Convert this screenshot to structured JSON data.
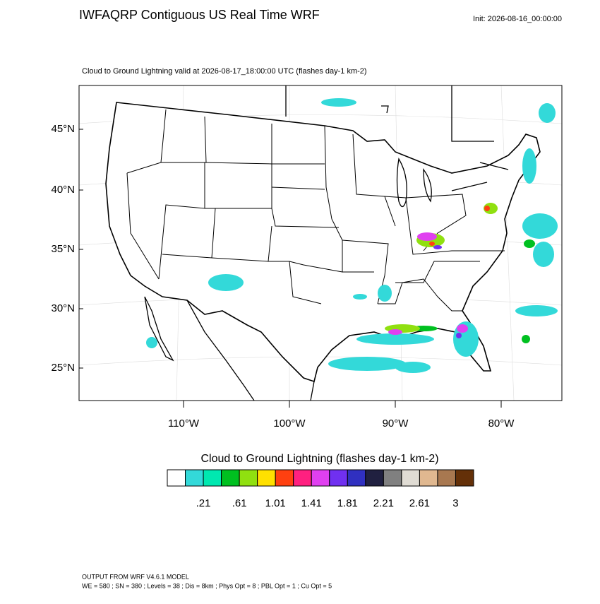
{
  "header": {
    "title": "IWFAQRP Contiguous US Real Time WRF",
    "init": "Init: 2026-08-16_00:00:00"
  },
  "plot": {
    "subtitle": "Cloud to Ground Lightning valid at 2026-08-17_18:00:00 UTC   (flashes day-1 km-2)",
    "lat_labels": [
      "45°N",
      "40°N",
      "35°N",
      "30°N",
      "25°N"
    ],
    "lon_labels": [
      "110°W",
      "100°W",
      "90°W",
      "80°W"
    ]
  },
  "colorbar": {
    "title": "Cloud to Ground Lightning  (flashes day-1 km-2)",
    "colors": [
      "#ffffff",
      "#33d9d9",
      "#00e8b0",
      "#00c020",
      "#90e010",
      "#ffe000",
      "#ff4010",
      "#ff2080",
      "#e040f0",
      "#7030f0",
      "#3030c0",
      "#202040",
      "#808080",
      "#e0dcd4",
      "#e0b890",
      "#a87850",
      "#643008"
    ],
    "labels": [
      ".21",
      ".61",
      "1.01",
      "1.41",
      "1.81",
      "2.21",
      "2.61",
      "3"
    ]
  },
  "footer": {
    "lines": [
      "OUTPUT FROM WRF V4.6.1 MODEL",
      "WE = 580 ; SN = 380 ; Levels = 38 ; Dis = 8km ; Phys Opt = 8 ; PBL Opt = 1 ; Cu Opt = 5"
    ]
  }
}
